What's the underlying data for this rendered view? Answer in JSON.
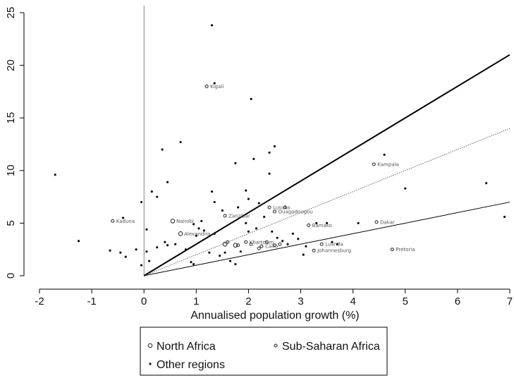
{
  "chart_data": {
    "type": "scatter",
    "title": "",
    "xlabel": "Annualised population growth (%)",
    "ylabel": "",
    "xlim": [
      -2,
      7
    ],
    "ylim": [
      0,
      25
    ],
    "xticks": [
      -2,
      -1,
      0,
      1,
      2,
      3,
      4,
      5,
      6,
      7
    ],
    "yticks": [
      0,
      5,
      10,
      15,
      20,
      25
    ],
    "grid": false,
    "legend_position": "bottom",
    "legend": [
      "North Africa",
      "Sub-Saharan Africa",
      "Other regions"
    ],
    "series": [
      {
        "name": "North Africa",
        "marker": "hollow-circle",
        "points": [
          {
            "x": 0.55,
            "y": 5.2,
            "label": "Nairobi"
          },
          {
            "x": 0.7,
            "y": 4.0,
            "label": "Alexandria"
          },
          {
            "x": 1.55,
            "y": 3.0,
            "label": ""
          },
          {
            "x": 1.75,
            "y": 2.9,
            "label": ""
          }
        ]
      },
      {
        "name": "Sub-Saharan Africa",
        "marker": "small-hollow-circle",
        "points": [
          {
            "x": 1.2,
            "y": 18.0,
            "label": "Kigali"
          },
          {
            "x": -0.6,
            "y": 5.2,
            "label": "Kaduna"
          },
          {
            "x": 4.4,
            "y": 10.6,
            "label": "Kampala"
          },
          {
            "x": 4.45,
            "y": 5.1,
            "label": "Dakar"
          },
          {
            "x": 4.75,
            "y": 2.5,
            "label": "Pretoria"
          },
          {
            "x": 3.25,
            "y": 2.4,
            "label": "Johannesburg"
          },
          {
            "x": 3.15,
            "y": 4.8,
            "label": "Bamako"
          },
          {
            "x": 1.55,
            "y": 5.7,
            "label": "Zanzibar"
          },
          {
            "x": 2.4,
            "y": 6.5,
            "label": "Lusaka"
          },
          {
            "x": 2.5,
            "y": 6.1,
            "label": "Ouagadougou"
          },
          {
            "x": 3.4,
            "y": 3.0,
            "label": "Luanda"
          },
          {
            "x": 1.95,
            "y": 3.2,
            "label": "Khartoum"
          },
          {
            "x": 2.25,
            "y": 2.8,
            "label": "Cairo"
          },
          {
            "x": 1.8,
            "y": 2.9,
            "label": ""
          },
          {
            "x": 2.05,
            "y": 3.0,
            "label": ""
          },
          {
            "x": 2.5,
            "y": 2.9,
            "label": ""
          },
          {
            "x": 2.7,
            "y": 6.5,
            "label": ""
          },
          {
            "x": 1.6,
            "y": 3.2,
            "label": ""
          },
          {
            "x": 2.35,
            "y": 3.2,
            "label": ""
          },
          {
            "x": 2.2,
            "y": 2.6,
            "label": ""
          },
          {
            "x": 2.6,
            "y": 3.0,
            "label": ""
          }
        ]
      },
      {
        "name": "Other regions",
        "marker": "dot",
        "points": [
          {
            "x": 1.3,
            "y": 23.8
          },
          {
            "x": 1.35,
            "y": 18.3
          },
          {
            "x": 2.05,
            "y": 16.8
          },
          {
            "x": 0.35,
            "y": 12.0
          },
          {
            "x": 0.7,
            "y": 12.7
          },
          {
            "x": 2.5,
            "y": 12.3
          },
          {
            "x": 2.4,
            "y": 11.7
          },
          {
            "x": 2.1,
            "y": 11.1
          },
          {
            "x": 1.75,
            "y": 10.7
          },
          {
            "x": -1.7,
            "y": 9.6
          },
          {
            "x": 0.45,
            "y": 8.9
          },
          {
            "x": 2.4,
            "y": 9.7
          },
          {
            "x": 1.3,
            "y": 8.0
          },
          {
            "x": 0.15,
            "y": 8.0
          },
          {
            "x": 0.25,
            "y": 7.5
          },
          {
            "x": 1.95,
            "y": 8.1
          },
          {
            "x": 2.0,
            "y": 7.3
          },
          {
            "x": 2.2,
            "y": 6.9
          },
          {
            "x": 1.35,
            "y": 7.0
          },
          {
            "x": 4.6,
            "y": 11.5
          },
          {
            "x": 5.0,
            "y": 8.3
          },
          {
            "x": 6.55,
            "y": 8.8
          },
          {
            "x": 6.9,
            "y": 5.6
          },
          {
            "x": -0.05,
            "y": 7.0
          },
          {
            "x": -0.4,
            "y": 5.5
          },
          {
            "x": -1.25,
            "y": 3.3
          },
          {
            "x": -0.65,
            "y": 2.4
          },
          {
            "x": -0.45,
            "y": 2.2
          },
          {
            "x": -0.35,
            "y": 1.8
          },
          {
            "x": -0.15,
            "y": 2.5
          },
          {
            "x": 0.05,
            "y": 2.3
          },
          {
            "x": 0.1,
            "y": 1.4
          },
          {
            "x": -0.05,
            "y": 1.0
          },
          {
            "x": 0.05,
            "y": 4.4
          },
          {
            "x": 0.25,
            "y": 2.7
          },
          {
            "x": 0.4,
            "y": 3.2
          },
          {
            "x": 0.45,
            "y": 2.9
          },
          {
            "x": 0.6,
            "y": 3.0
          },
          {
            "x": 0.8,
            "y": 2.5
          },
          {
            "x": 0.9,
            "y": 1.3
          },
          {
            "x": 0.95,
            "y": 1.1
          },
          {
            "x": 1.0,
            "y": 3.8
          },
          {
            "x": 1.05,
            "y": 4.5
          },
          {
            "x": 1.15,
            "y": 4.3
          },
          {
            "x": 1.25,
            "y": 2.2
          },
          {
            "x": 1.35,
            "y": 4.0
          },
          {
            "x": 1.45,
            "y": 1.9
          },
          {
            "x": 1.55,
            "y": 2.2
          },
          {
            "x": 1.65,
            "y": 1.4
          },
          {
            "x": 1.75,
            "y": 1.1
          },
          {
            "x": 1.85,
            "y": 2.3
          },
          {
            "x": 1.95,
            "y": 5.0
          },
          {
            "x": 2.0,
            "y": 4.2
          },
          {
            "x": 2.15,
            "y": 4.5
          },
          {
            "x": 2.3,
            "y": 5.6
          },
          {
            "x": 2.45,
            "y": 4.2
          },
          {
            "x": 2.55,
            "y": 3.6
          },
          {
            "x": 2.65,
            "y": 3.3
          },
          {
            "x": 2.75,
            "y": 3.0
          },
          {
            "x": 2.85,
            "y": 4.0
          },
          {
            "x": 2.95,
            "y": 3.5
          },
          {
            "x": 3.05,
            "y": 2.0
          },
          {
            "x": 3.1,
            "y": 2.8
          },
          {
            "x": 3.3,
            "y": 5.0
          },
          {
            "x": 3.5,
            "y": 5.0
          },
          {
            "x": 3.6,
            "y": 3.2
          },
          {
            "x": 3.7,
            "y": 3.0
          },
          {
            "x": 4.1,
            "y": 5.0
          },
          {
            "x": 1.5,
            "y": 6.2
          },
          {
            "x": 1.8,
            "y": 6.5
          },
          {
            "x": 0.95,
            "y": 4.9
          },
          {
            "x": 1.1,
            "y": 5.2
          }
        ]
      }
    ],
    "reference_lines": [
      {
        "points": [
          [
            0,
            0
          ],
          [
            7,
            21
          ]
        ],
        "style": "thick-solid"
      },
      {
        "points": [
          [
            0,
            0
          ],
          [
            7,
            14
          ]
        ],
        "style": "dotted"
      },
      {
        "points": [
          [
            0,
            0
          ],
          [
            7,
            7
          ]
        ],
        "style": "thin-solid"
      }
    ]
  }
}
